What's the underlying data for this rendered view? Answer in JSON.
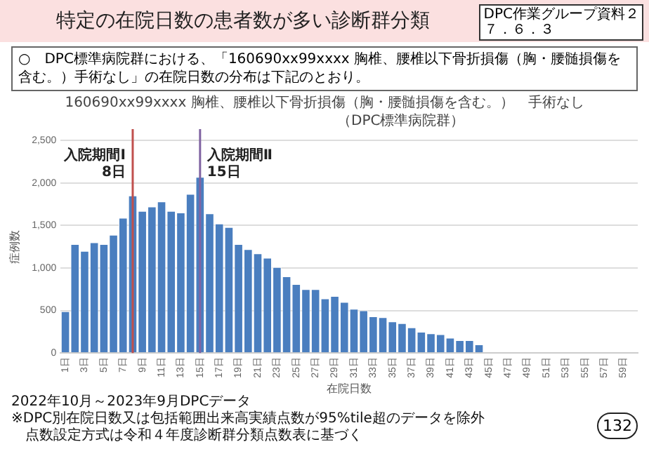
{
  "chart_data": {
    "type": "bar",
    "title": "特定の在院日数の患者数が多い診断群分類",
    "subtitle": "○　DPC標準病院群における、「160690xx99xxxx 胸椎、腰椎以下骨折損傷（胸・腰髄損傷を含む。）手術なし」の在院日数の分布は下記のとおり。",
    "xlabel": "在院日数",
    "ylabel": "症例数",
    "x": [
      1,
      2,
      3,
      4,
      5,
      6,
      7,
      8,
      9,
      10,
      11,
      12,
      13,
      14,
      15,
      16,
      17,
      18,
      19,
      20,
      21,
      22,
      23,
      24,
      25,
      26,
      27,
      28,
      29,
      30,
      31,
      32,
      33,
      34,
      35,
      36,
      37,
      38,
      39,
      40,
      41,
      42,
      43,
      44
    ],
    "values": [
      490,
      1280,
      1200,
      1300,
      1280,
      1390,
      1590,
      1850,
      1670,
      1720,
      1780,
      1670,
      1650,
      1870,
      2070,
      1640,
      1520,
      1480,
      1280,
      1220,
      1170,
      1120,
      1010,
      900,
      810,
      750,
      750,
      640,
      670,
      600,
      520,
      500,
      430,
      420,
      370,
      350,
      300,
      250,
      230,
      220,
      180,
      150,
      150,
      100
    ],
    "color": "#4a7ebf",
    "xlim": [
      0.5,
      60.5
    ],
    "xticks": [
      {
        "value": 1,
        "label": "1日"
      },
      {
        "value": 3,
        "label": "3日"
      },
      {
        "value": 5,
        "label": "5日"
      },
      {
        "value": 7,
        "label": "7日"
      },
      {
        "value": 9,
        "label": "9日"
      },
      {
        "value": 11,
        "label": "11日"
      },
      {
        "value": 13,
        "label": "13日"
      },
      {
        "value": 15,
        "label": "15日"
      },
      {
        "value": 17,
        "label": "17日"
      },
      {
        "value": 19,
        "label": "19日"
      },
      {
        "value": 21,
        "label": "21日"
      },
      {
        "value": 23,
        "label": "23日"
      },
      {
        "value": 25,
        "label": "25日"
      },
      {
        "value": 27,
        "label": "27日"
      },
      {
        "value": 29,
        "label": "29日"
      },
      {
        "value": 31,
        "label": "31日"
      },
      {
        "value": 33,
        "label": "33日"
      },
      {
        "value": 35,
        "label": "35日"
      },
      {
        "value": 37,
        "label": "37日"
      },
      {
        "value": 39,
        "label": "39日"
      },
      {
        "value": 41,
        "label": "41日"
      },
      {
        "value": 43,
        "label": "43日"
      },
      {
        "value": 45,
        "label": "45日"
      },
      {
        "value": 47,
        "label": "47日"
      },
      {
        "value": 49,
        "label": "49日"
      },
      {
        "value": 51,
        "label": "51日"
      },
      {
        "value": 53,
        "label": "53日"
      },
      {
        "value": 55,
        "label": "55日"
      },
      {
        "value": 57,
        "label": "57日"
      },
      {
        "value": 59,
        "label": "59日"
      }
    ],
    "ylim": [
      0,
      2500
    ],
    "yticks": [
      0,
      {
        "value": 500,
        "label": "500"
      },
      {
        "value": 1000,
        "label": "1,000"
      },
      {
        "value": 1500,
        "label": "1,500"
      },
      {
        "value": 2000,
        "label": "2,000"
      },
      {
        "value": 2500,
        "label": "2,500"
      }
    ],
    "grid": "y",
    "legend": false,
    "ref_lines": [
      {
        "axis": "x",
        "value": 8,
        "label": "入院期間Ⅰ\n8日",
        "color": "#c0504d"
      },
      {
        "axis": "x",
        "value": 15,
        "label": "入院期間Ⅱ\n15日",
        "color": "#8064a2"
      }
    ],
    "annotations": [
      "160690xx99xxxx 胸椎、腰椎以下骨折損傷（胸・腰髄損傷を含む。）　手術なし",
      "（DPC標準病院群）",
      "2022年10月～2023年9月DPCデータ",
      "※DPC別在院日数又は包括範囲出来高実績点数が95%tile超のデータを除外",
      "点数設定方式は令和４年度診断群分類点数表に基づく",
      "132",
      "DPC作業グループ資料２",
      "７．６．３"
    ]
  }
}
